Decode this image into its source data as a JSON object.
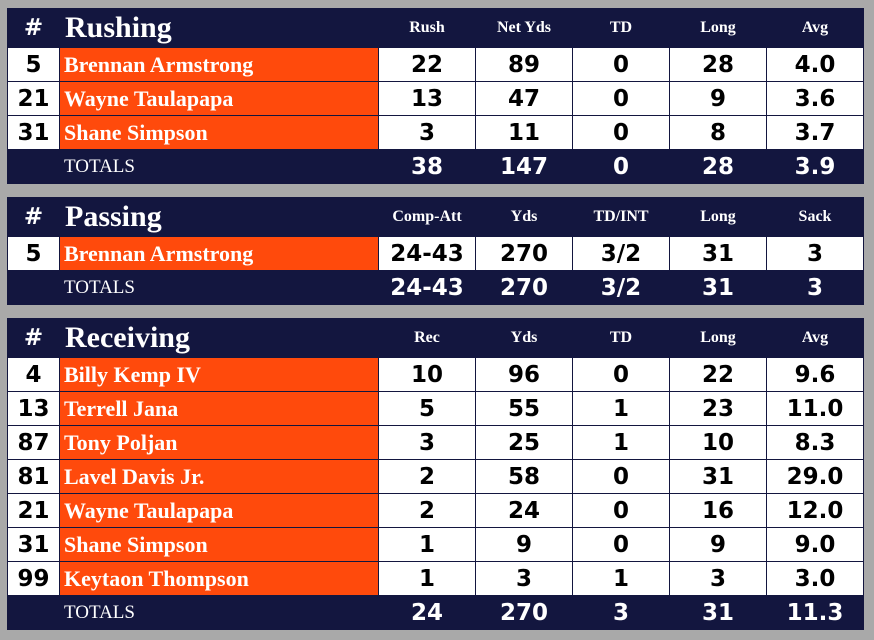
{
  "rushing": {
    "num_header": "#",
    "title": "Rushing",
    "columns": [
      "Rush",
      "Net Yds",
      "TD",
      "Long",
      "Avg"
    ],
    "rows": [
      {
        "num": "5",
        "name": "Brennan Armstrong",
        "vals": [
          "22",
          "89",
          "0",
          "28",
          "4.0"
        ]
      },
      {
        "num": "21",
        "name": "Wayne Taulapapa",
        "vals": [
          "13",
          "47",
          "0",
          "9",
          "3.6"
        ]
      },
      {
        "num": "31",
        "name": "Shane Simpson",
        "vals": [
          "3",
          "11",
          "0",
          "8",
          "3.7"
        ]
      }
    ],
    "totals": {
      "label": "TOTALS",
      "vals": [
        "38",
        "147",
        "0",
        "28",
        "3.9"
      ]
    }
  },
  "passing": {
    "num_header": "#",
    "title": "Passing",
    "columns": [
      "Comp-Att",
      "Yds",
      "TD/INT",
      "Long",
      "Sack"
    ],
    "rows": [
      {
        "num": "5",
        "name": "Brennan Armstrong",
        "vals": [
          "24-43",
          "270",
          "3/2",
          "31",
          "3"
        ]
      }
    ],
    "totals": {
      "label": "TOTALS",
      "vals": [
        "24-43",
        "270",
        "3/2",
        "31",
        "3"
      ]
    }
  },
  "receiving": {
    "num_header": "#",
    "title": "Receiving",
    "columns": [
      "Rec",
      "Yds",
      "TD",
      "Long",
      "Avg"
    ],
    "rows": [
      {
        "num": "4",
        "name": "Billy Kemp IV",
        "vals": [
          "10",
          "96",
          "0",
          "22",
          "9.6"
        ]
      },
      {
        "num": "13",
        "name": "Terrell Jana",
        "vals": [
          "5",
          "55",
          "1",
          "23",
          "11.0"
        ]
      },
      {
        "num": "87",
        "name": "Tony Poljan",
        "vals": [
          "3",
          "25",
          "1",
          "10",
          "8.3"
        ]
      },
      {
        "num": "81",
        "name": "Lavel Davis Jr.",
        "vals": [
          "2",
          "58",
          "0",
          "31",
          "29.0"
        ]
      },
      {
        "num": "21",
        "name": "Wayne Taulapapa",
        "vals": [
          "2",
          "24",
          "0",
          "16",
          "12.0"
        ]
      },
      {
        "num": "31",
        "name": "Shane Simpson",
        "vals": [
          "1",
          "9",
          "0",
          "9",
          "9.0"
        ]
      },
      {
        "num": "99",
        "name": "Keytaon Thompson",
        "vals": [
          "1",
          "3",
          "1",
          "3",
          "3.0"
        ]
      }
    ],
    "totals": {
      "label": "TOTALS",
      "vals": [
        "24",
        "270",
        "3",
        "31",
        "11.3"
      ]
    }
  },
  "colors": {
    "navy": "#13163f",
    "orange": "#ff4a0c",
    "background": "#a9a9a9"
  }
}
